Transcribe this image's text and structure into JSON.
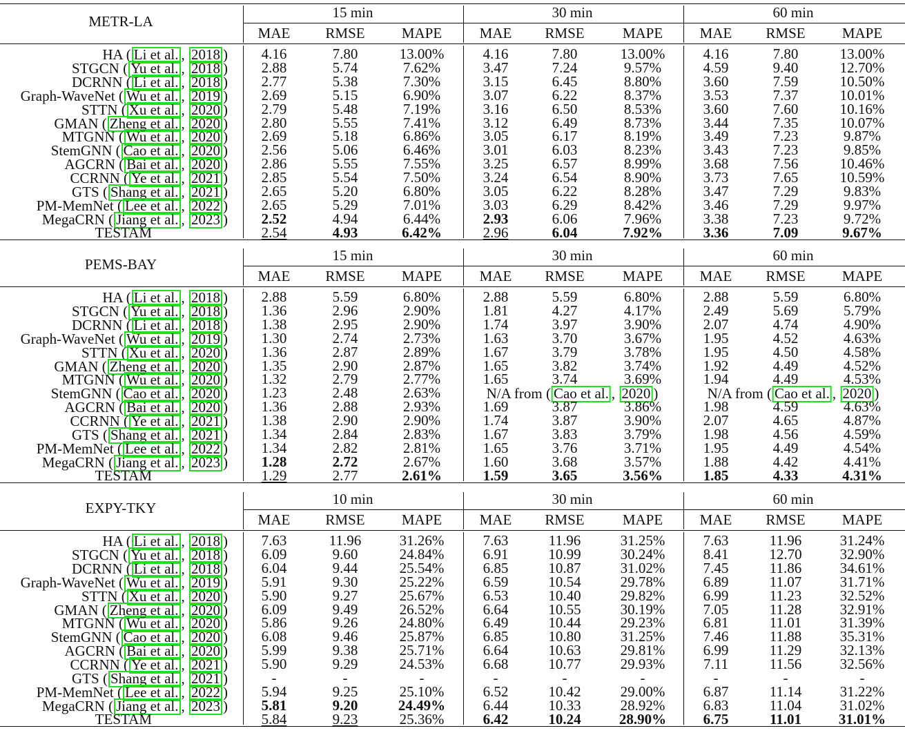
{
  "columns": {
    "horizons_a": [
      "15 min",
      "30 min",
      "60 min"
    ],
    "horizons_c": [
      "10 min",
      "30 min",
      "60 min"
    ],
    "metrics": [
      "MAE",
      "RMSE",
      "MAPE"
    ]
  },
  "colors": {
    "citation_box": "#22dd22",
    "text": "#111111"
  },
  "methods": [
    {
      "name": "HA",
      "authors": "Li et al.",
      "year": "2018"
    },
    {
      "name": "STGCN",
      "authors": "Yu et al.",
      "year": "2018"
    },
    {
      "name": "DCRNN",
      "authors": "Li et al.",
      "year": "2018"
    },
    {
      "name": "Graph-WaveNet",
      "authors": "Wu et al.",
      "year": "2019"
    },
    {
      "name": "STTN",
      "authors": "Xu et al.",
      "year": "2020"
    },
    {
      "name": "GMAN",
      "authors": "Zheng et al.",
      "year": "2020"
    },
    {
      "name": "MTGNN",
      "authors": "Wu et al.",
      "year": "2020"
    },
    {
      "name": "StemGNN",
      "authors": "Cao et al.",
      "year": "2020"
    },
    {
      "name": "AGCRN",
      "authors": "Bai et al.",
      "year": "2020"
    },
    {
      "name": "CCRNN",
      "authors": "Ye et al.",
      "year": "2021"
    },
    {
      "name": "GTS",
      "authors": "Shang et al.",
      "year": "2021"
    },
    {
      "name": "PM-MemNet",
      "authors": "Lee et al.",
      "year": "2022"
    },
    {
      "name": "MegaCRN",
      "authors": "Jiang et al.",
      "year": "2023"
    },
    {
      "name": "TESTAM",
      "authors": "",
      "year": ""
    }
  ],
  "blocks": [
    {
      "dataset": "METR-LA",
      "horizons": [
        "15 min",
        "30 min",
        "60 min"
      ],
      "rows": [
        {
          "values": [
            "4.16",
            "7.80",
            "13.00%",
            "4.16",
            "7.80",
            "13.00%",
            "4.16",
            "7.80",
            "13.00%"
          ],
          "bold": [],
          "underline": []
        },
        {
          "values": [
            "2.88",
            "5.74",
            "7.62%",
            "3.47",
            "7.24",
            "9.57%",
            "4.59",
            "9.40",
            "12.70%"
          ],
          "bold": [],
          "underline": []
        },
        {
          "values": [
            "2.77",
            "5.38",
            "7.30%",
            "3.15",
            "6.45",
            "8.80%",
            "3.60",
            "7.59",
            "10.50%"
          ],
          "bold": [],
          "underline": []
        },
        {
          "values": [
            "2.69",
            "5.15",
            "6.90%",
            "3.07",
            "6.22",
            "8.37%",
            "3.53",
            "7.37",
            "10.01%"
          ],
          "bold": [],
          "underline": []
        },
        {
          "values": [
            "2.79",
            "5.48",
            "7.19%",
            "3.16",
            "6.50",
            "8.53%",
            "3.60",
            "7.60",
            "10.16%"
          ],
          "bold": [],
          "underline": []
        },
        {
          "values": [
            "2.80",
            "5.55",
            "7.41%",
            "3.12",
            "6.49",
            "8.73%",
            "3.44",
            "7.35",
            "10.07%"
          ],
          "bold": [],
          "underline": []
        },
        {
          "values": [
            "2.69",
            "5.18",
            "6.86%",
            "3.05",
            "6.17",
            "8.19%",
            "3.49",
            "7.23",
            "9.87%"
          ],
          "bold": [],
          "underline": []
        },
        {
          "values": [
            "2.56",
            "5.06",
            "6.46%",
            "3.01",
            "6.03",
            "8.23%",
            "3.43",
            "7.23",
            "9.85%"
          ],
          "bold": [],
          "underline": []
        },
        {
          "values": [
            "2.86",
            "5.55",
            "7.55%",
            "3.25",
            "6.57",
            "8.99%",
            "3.68",
            "7.56",
            "10.46%"
          ],
          "bold": [],
          "underline": []
        },
        {
          "values": [
            "2.85",
            "5.54",
            "7.50%",
            "3.24",
            "6.54",
            "8.90%",
            "3.73",
            "7.65",
            "10.59%"
          ],
          "bold": [],
          "underline": []
        },
        {
          "values": [
            "2.65",
            "5.20",
            "6.80%",
            "3.05",
            "6.22",
            "8.28%",
            "3.47",
            "7.29",
            "9.83%"
          ],
          "bold": [],
          "underline": []
        },
        {
          "values": [
            "2.65",
            "5.29",
            "7.01%",
            "3.03",
            "6.29",
            "8.42%",
            "3.46",
            "7.29",
            "9.97%"
          ],
          "bold": [],
          "underline": []
        },
        {
          "values": [
            "2.52",
            "4.94",
            "6.44%",
            "2.93",
            "6.06",
            "7.96%",
            "3.38",
            "7.23",
            "9.72%"
          ],
          "bold": [
            0,
            3
          ],
          "underline": []
        },
        {
          "values": [
            "2.54",
            "4.93",
            "6.42%",
            "2.96",
            "6.04",
            "7.92%",
            "3.36",
            "7.09",
            "9.67%"
          ],
          "bold": [
            1,
            2,
            4,
            5,
            6,
            7,
            8
          ],
          "underline": [
            0,
            3
          ]
        }
      ]
    },
    {
      "dataset": "PEMS-BAY",
      "horizons": [
        "15 min",
        "30 min",
        "60 min"
      ],
      "na_text": "N/A from",
      "rows": [
        {
          "values": [
            "2.88",
            "5.59",
            "6.80%",
            "2.88",
            "5.59",
            "6.80%",
            "2.88",
            "5.59",
            "6.80%"
          ],
          "bold": [],
          "underline": []
        },
        {
          "values": [
            "1.36",
            "2.96",
            "2.90%",
            "1.81",
            "4.27",
            "4.17%",
            "2.49",
            "5.69",
            "5.79%"
          ],
          "bold": [],
          "underline": []
        },
        {
          "values": [
            "1.38",
            "2.95",
            "2.90%",
            "1.74",
            "3.97",
            "3.90%",
            "2.07",
            "4.74",
            "4.90%"
          ],
          "bold": [],
          "underline": []
        },
        {
          "values": [
            "1.30",
            "2.74",
            "2.73%",
            "1.63",
            "3.70",
            "3.67%",
            "1.95",
            "4.52",
            "4.63%"
          ],
          "bold": [],
          "underline": []
        },
        {
          "values": [
            "1.36",
            "2.87",
            "2.89%",
            "1.67",
            "3.79",
            "3.78%",
            "1.95",
            "4.50",
            "4.58%"
          ],
          "bold": [],
          "underline": []
        },
        {
          "values": [
            "1.35",
            "2.90",
            "2.87%",
            "1.65",
            "3.82",
            "3.74%",
            "1.92",
            "4.49",
            "4.52%"
          ],
          "bold": [],
          "underline": []
        },
        {
          "values": [
            "1.32",
            "2.79",
            "2.77%",
            "1.65",
            "3.74",
            "3.69%",
            "1.94",
            "4.49",
            "4.53%"
          ],
          "bold": [],
          "underline": []
        },
        {
          "values": [
            "1.23",
            "2.48",
            "2.63%",
            "",
            "",
            "",
            "",
            "",
            ""
          ],
          "bold": [],
          "underline": [],
          "na": true
        },
        {
          "values": [
            "1.36",
            "2.88",
            "2.93%",
            "1.69",
            "3.87",
            "3.86%",
            "1.98",
            "4.59",
            "4.63%"
          ],
          "bold": [],
          "underline": []
        },
        {
          "values": [
            "1.38",
            "2.90",
            "2.90%",
            "1.74",
            "3.87",
            "3.90%",
            "2.07",
            "4.65",
            "4.87%"
          ],
          "bold": [],
          "underline": []
        },
        {
          "values": [
            "1.34",
            "2.84",
            "2.83%",
            "1.67",
            "3.83",
            "3.79%",
            "1.98",
            "4.56",
            "4.59%"
          ],
          "bold": [],
          "underline": []
        },
        {
          "values": [
            "1.34",
            "2.82",
            "2.81%",
            "1.65",
            "3.76",
            "3.71%",
            "1.95",
            "4.49",
            "4.54%"
          ],
          "bold": [],
          "underline": []
        },
        {
          "values": [
            "1.28",
            "2.72",
            "2.67%",
            "1.60",
            "3.68",
            "3.57%",
            "1.88",
            "4.42",
            "4.41%"
          ],
          "bold": [
            0,
            1
          ],
          "underline": []
        },
        {
          "values": [
            "1.29",
            "2.77",
            "2.61%",
            "1.59",
            "3.65",
            "3.56%",
            "1.85",
            "4.33",
            "4.31%"
          ],
          "bold": [
            2,
            3,
            4,
            5,
            6,
            7,
            8
          ],
          "underline": [
            0
          ]
        }
      ]
    },
    {
      "dataset": "EXPY-TKY",
      "horizons": [
        "10 min",
        "30 min",
        "60 min"
      ],
      "rows": [
        {
          "values": [
            "7.63",
            "11.96",
            "31.26%",
            "7.63",
            "11.96",
            "31.25%",
            "7.63",
            "11.96",
            "31.24%"
          ],
          "bold": [],
          "underline": []
        },
        {
          "values": [
            "6.09",
            "9.60",
            "24.84%",
            "6.91",
            "10.99",
            "30.24%",
            "8.41",
            "12.70",
            "32.90%"
          ],
          "bold": [],
          "underline": []
        },
        {
          "values": [
            "6.04",
            "9.44",
            "25.54%",
            "6.85",
            "10.87",
            "31.02%",
            "7.45",
            "11.86",
            "34.61%"
          ],
          "bold": [],
          "underline": []
        },
        {
          "values": [
            "5.91",
            "9.30",
            "25.22%",
            "6.59",
            "10.54",
            "29.78%",
            "6.89",
            "11.07",
            "31.71%"
          ],
          "bold": [],
          "underline": []
        },
        {
          "values": [
            "5.90",
            "9.27",
            "25.67%",
            "6.53",
            "10.40",
            "29.82%",
            "6.99",
            "11.23",
            "32.52%"
          ],
          "bold": [],
          "underline": []
        },
        {
          "values": [
            "6.09",
            "9.49",
            "26.52%",
            "6.64",
            "10.55",
            "30.19%",
            "7.05",
            "11.28",
            "32.91%"
          ],
          "bold": [],
          "underline": []
        },
        {
          "values": [
            "5.86",
            "9.26",
            "24.80%",
            "6.49",
            "10.44",
            "29.23%",
            "6.81",
            "11.01",
            "31.39%"
          ],
          "bold": [],
          "underline": []
        },
        {
          "values": [
            "6.08",
            "9.46",
            "25.87%",
            "6.85",
            "10.80",
            "31.25%",
            "7.46",
            "11.88",
            "35.31%"
          ],
          "bold": [],
          "underline": []
        },
        {
          "values": [
            "5.99",
            "9.38",
            "25.71%",
            "6.64",
            "10.63",
            "29.81%",
            "6.99",
            "11.29",
            "32.13%"
          ],
          "bold": [],
          "underline": []
        },
        {
          "values": [
            "5.90",
            "9.29",
            "24.53%",
            "6.68",
            "10.77",
            "29.93%",
            "7.11",
            "11.56",
            "32.56%"
          ],
          "bold": [],
          "underline": []
        },
        {
          "values": [
            "-",
            "-",
            "-",
            "-",
            "-",
            "-",
            "-",
            "-",
            "-"
          ],
          "bold": [],
          "underline": []
        },
        {
          "values": [
            "5.94",
            "9.25",
            "25.10%",
            "6.52",
            "10.42",
            "29.00%",
            "6.87",
            "11.14",
            "31.22%"
          ],
          "bold": [],
          "underline": []
        },
        {
          "values": [
            "5.81",
            "9.20",
            "24.49%",
            "6.44",
            "10.33",
            "28.92%",
            "6.83",
            "11.04",
            "31.02%"
          ],
          "bold": [
            0,
            1,
            2
          ],
          "underline": []
        },
        {
          "values": [
            "5.84",
            "9.23",
            "25.36%",
            "6.42",
            "10.24",
            "28.90%",
            "6.75",
            "11.01",
            "31.01%"
          ],
          "bold": [
            3,
            4,
            5,
            6,
            7,
            8
          ],
          "underline": [
            0,
            1
          ]
        }
      ]
    }
  ]
}
